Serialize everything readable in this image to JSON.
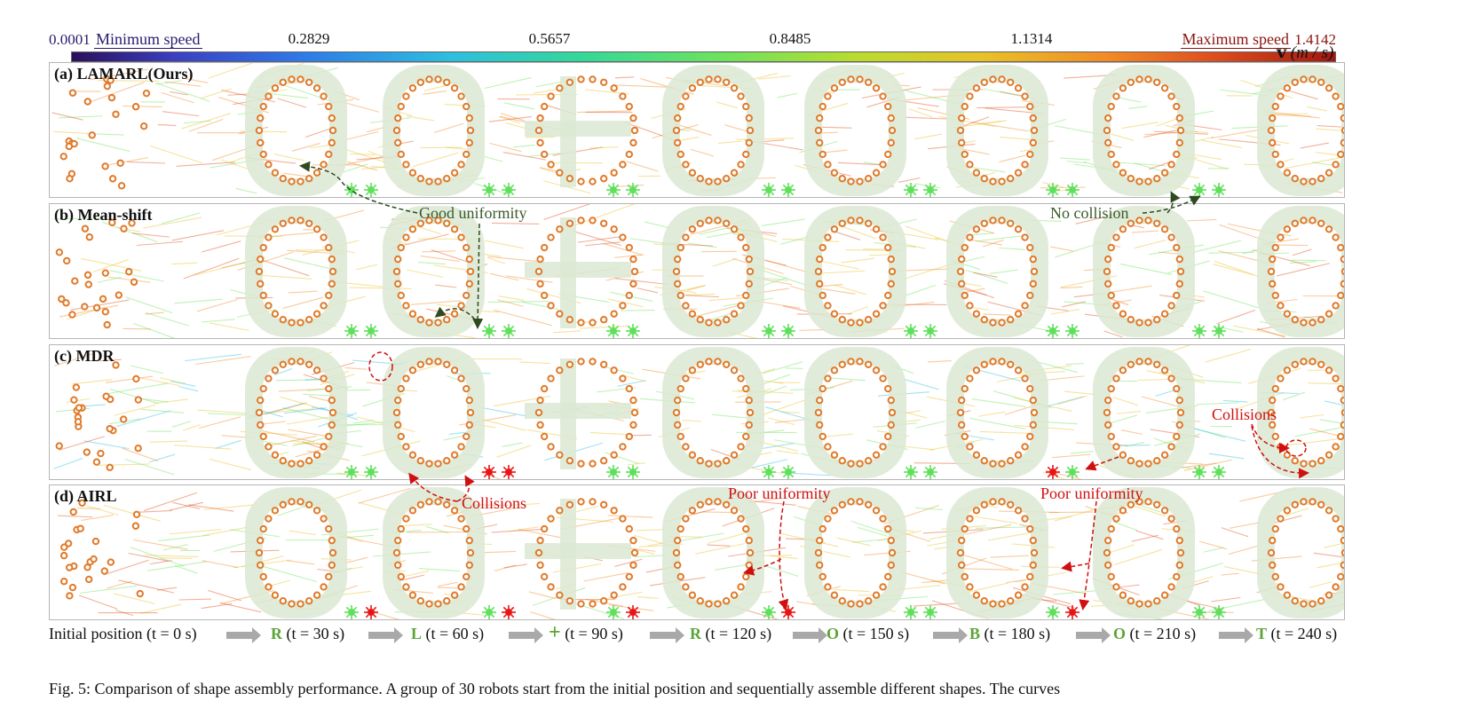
{
  "colorbar": {
    "min_label": "Minimum speed",
    "min_value": "0.0001",
    "max_label": "Maximum speed",
    "max_value": "1.4142",
    "ticks": [
      "0.2829",
      "0.5657",
      "0.8485",
      "1.1314"
    ],
    "unit_symbol": "v",
    "unit": "(m / s)"
  },
  "panels": [
    {
      "title": "(a) LAMARL(Ours)",
      "markers": [
        "green",
        "green",
        "green",
        "green",
        "green",
        "green",
        "green",
        "green",
        "green",
        "green",
        "green",
        "green",
        "green",
        "green",
        "green",
        "green"
      ]
    },
    {
      "title": "(b) Mean-shift",
      "markers": [
        "green",
        "green",
        "green",
        "green",
        "green",
        "green",
        "green",
        "green",
        "green",
        "green",
        "green",
        "green",
        "green",
        "green",
        "green",
        "green"
      ]
    },
    {
      "title": "(c) MDR",
      "markers": [
        "green",
        "green",
        "red",
        "red",
        "green",
        "green",
        "green",
        "green",
        "green",
        "green",
        "red",
        "green",
        "green",
        "green",
        "red",
        "green"
      ]
    },
    {
      "title": "(d) AIRL",
      "markers": [
        "green",
        "red",
        "green",
        "red",
        "green",
        "red",
        "green",
        "red",
        "green",
        "green",
        "green",
        "red",
        "green",
        "green",
        "green",
        "red"
      ]
    }
  ],
  "annotations": {
    "good_uniformity": "Good uniformity",
    "no_collision": "No collision",
    "collisions_c": "Collisions",
    "collisions_c2": "Collisions",
    "poor_uniformity_1": "Poor uniformity",
    "poor_uniformity_2": "Poor uniformity"
  },
  "timeline": [
    {
      "letter": "",
      "text": "Initial position (t = 0 s)"
    },
    {
      "letter": "R",
      "text": " (t = 30 s)"
    },
    {
      "letter": "L",
      "text": " (t = 60 s)"
    },
    {
      "letter": "+",
      "text": " (t = 90 s)"
    },
    {
      "letter": "R",
      "text": " (t = 120 s)"
    },
    {
      "letter": "O",
      "text": " (t = 150 s)"
    },
    {
      "letter": "B",
      "text": " (t = 180 s)"
    },
    {
      "letter": "O",
      "text": " (t = 210 s)"
    },
    {
      "letter": "T",
      "text": " (t = 240 s)"
    }
  ],
  "caption": "Fig. 5: Comparison of shape assembly performance. A group of 30 robots start from the initial position and sequentially assemble different shapes. The curves",
  "colors": {
    "robot": "#e07a2a",
    "shape": "#dbe9d2",
    "ok_marker": "#5ee05a",
    "bad_marker": "#e81414",
    "green_annot": "#3b5a2b",
    "red_annot": "#d01010"
  }
}
